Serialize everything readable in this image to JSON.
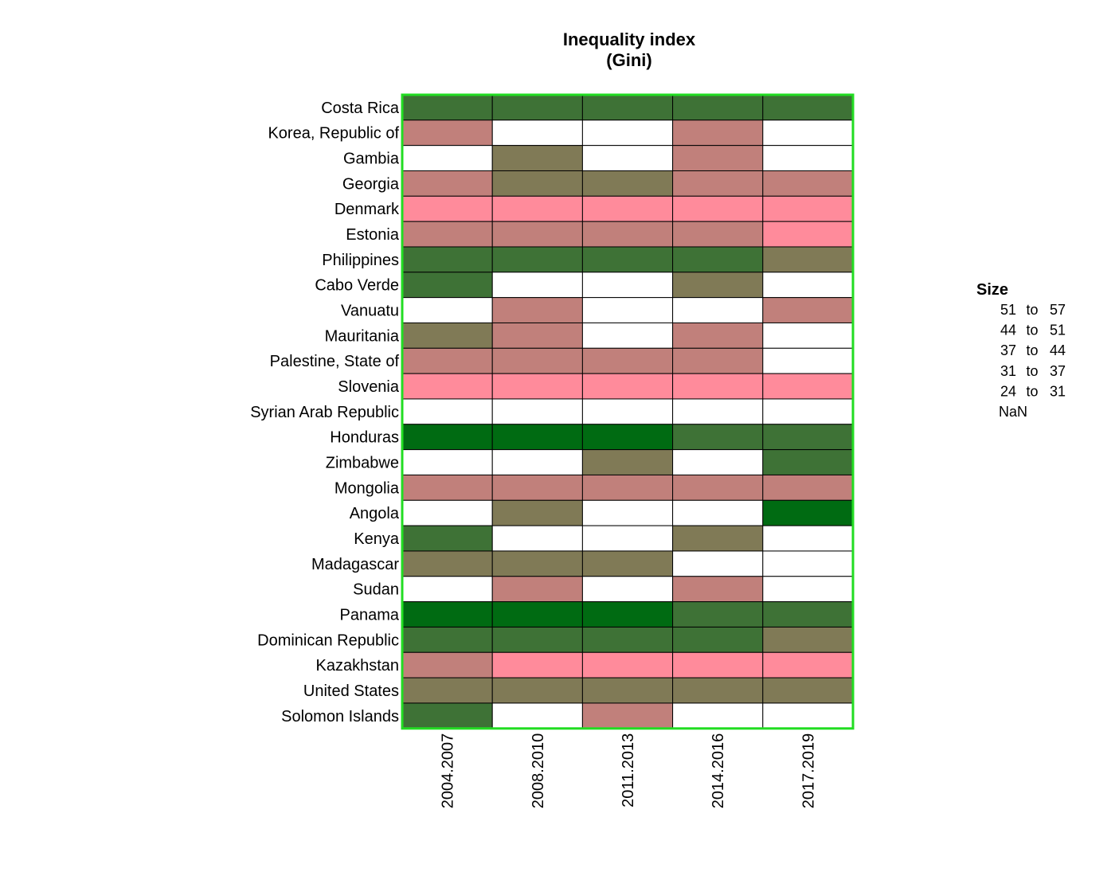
{
  "chart_data": {
    "type": "heatmap",
    "title": [
      "Inequality index",
      "(Gini)"
    ],
    "columns": [
      "2004.2007",
      "2008.2010",
      "2011.2013",
      "2014.2016",
      "2017.2019"
    ],
    "rows": [
      "Costa Rica",
      "Korea, Republic of",
      "Gambia",
      "Georgia",
      "Denmark",
      "Estonia",
      "Philippines",
      "Cabo Verde",
      "Vanuatu",
      "Mauritania",
      "Palestine, State of",
      "Slovenia",
      "Syrian Arab Republic",
      "Honduras",
      "Zimbabwe",
      "Mongolia",
      "Angola",
      "Kenya",
      "Madagascar",
      "Sudan",
      "Panama",
      "Dominican Republic",
      "Kazakhstan",
      "United States",
      "Solomon Islands"
    ],
    "bins": [
      "44 to 51",
      "44 to 51",
      "44 to 51",
      "44 to 51",
      "44 to 51",
      "31 to 37",
      "NaN",
      "NaN",
      "31 to 37",
      "NaN",
      "NaN",
      "37 to 44",
      "NaN",
      "31 to 37",
      "NaN",
      "31 to 37",
      "37 to 44",
      "37 to 44",
      "31 to 37",
      "31 to 37",
      "24 to 31",
      "24 to 31",
      "24 to 31",
      "24 to 31",
      "24 to 31",
      "31 to 37",
      "31 to 37",
      "31 to 37",
      "31 to 37",
      "24 to 31",
      "44 to 51",
      "44 to 51",
      "44 to 51",
      "44 to 51",
      "37 to 44",
      "44 to 51",
      "NaN",
      "NaN",
      "37 to 44",
      "NaN",
      "NaN",
      "31 to 37",
      "NaN",
      "NaN",
      "31 to 37",
      "37 to 44",
      "31 to 37",
      "NaN",
      "31 to 37",
      "NaN",
      "31 to 37",
      "31 to 37",
      "31 to 37",
      "31 to 37",
      "NaN",
      "24 to 31",
      "24 to 31",
      "24 to 31",
      "24 to 31",
      "24 to 31",
      "NaN",
      "NaN",
      "NaN",
      "NaN",
      "NaN",
      "51 to 57",
      "51 to 57",
      "51 to 57",
      "44 to 51",
      "44 to 51",
      "NaN",
      "NaN",
      "37 to 44",
      "NaN",
      "44 to 51",
      "31 to 37",
      "31 to 37",
      "31 to 37",
      "31 to 37",
      "31 to 37",
      "NaN",
      "37 to 44",
      "NaN",
      "NaN",
      "51 to 57",
      "44 to 51",
      "NaN",
      "NaN",
      "37 to 44",
      "NaN",
      "37 to 44",
      "37 to 44",
      "37 to 44",
      "NaN",
      "NaN",
      "NaN",
      "31 to 37",
      "NaN",
      "31 to 37",
      "NaN",
      "51 to 57",
      "51 to 57",
      "51 to 57",
      "44 to 51",
      "44 to 51",
      "44 to 51",
      "44 to 51",
      "44 to 51",
      "44 to 51",
      "37 to 44",
      "31 to 37",
      "24 to 31",
      "24 to 31",
      "24 to 31",
      "24 to 31",
      "37 to 44",
      "37 to 44",
      "37 to 44",
      "37 to 44",
      "37 to 44",
      "44 to 51",
      "NaN",
      "31 to 37",
      "NaN",
      "NaN"
    ],
    "legend": {
      "title": "Size",
      "entries": [
        {
          "from": "51",
          "to": "57",
          "label": "51 to 57",
          "color": "#006b12"
        },
        {
          "from": "44",
          "to": "51",
          "label": "44 to 51",
          "color": "#3e7236"
        },
        {
          "from": "37",
          "to": "44",
          "label": "37 to 44",
          "color": "#807a56"
        },
        {
          "from": "31",
          "to": "37",
          "label": "31 to 37",
          "color": "#c1807b"
        },
        {
          "from": "24",
          "to": "31",
          "label": "24 to 31",
          "color": "#ff8b9b"
        },
        {
          "from": "",
          "to": "",
          "label": "NaN",
          "color": "#ffffff"
        }
      ],
      "to_word": "to",
      "placement": "right"
    },
    "frame_color": "#22dd22",
    "cell_border_color": "#000000"
  }
}
